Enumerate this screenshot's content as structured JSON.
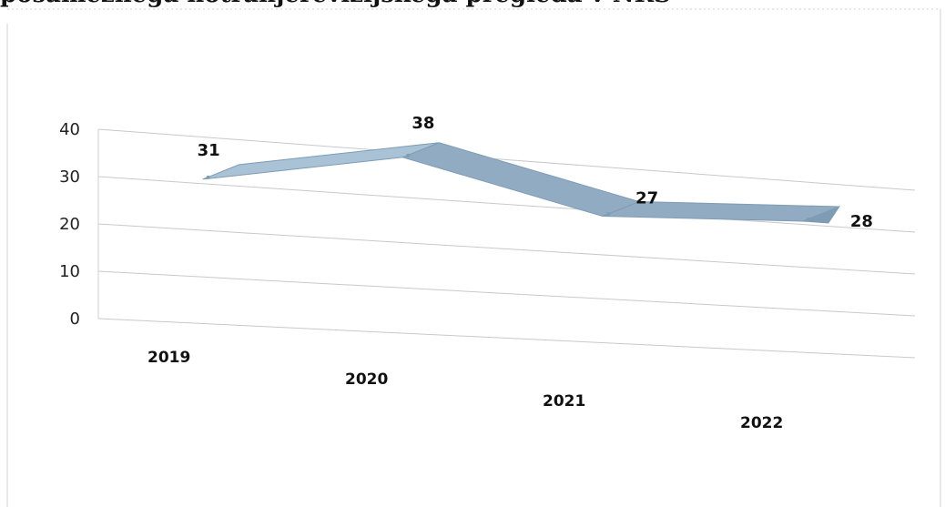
{
  "chart_data": {
    "type": "line",
    "style": "3d-ribbon",
    "title": "posameznega notranjerevizijskega pregleda v NRS",
    "categories": [
      "2019",
      "2020",
      "2021",
      "2022"
    ],
    "series": [
      {
        "values": [
          31,
          38,
          27,
          28
        ]
      }
    ],
    "ylim": [
      0,
      40
    ],
    "yticks": [
      0,
      10,
      20,
      30,
      40
    ],
    "grid": true,
    "legend": "none",
    "data_labels": true,
    "colors": {
      "ribbon_top": "#a9c2d5",
      "ribbon_face": "#90abc2",
      "ribbon_dark": "#7f9cb5"
    }
  }
}
